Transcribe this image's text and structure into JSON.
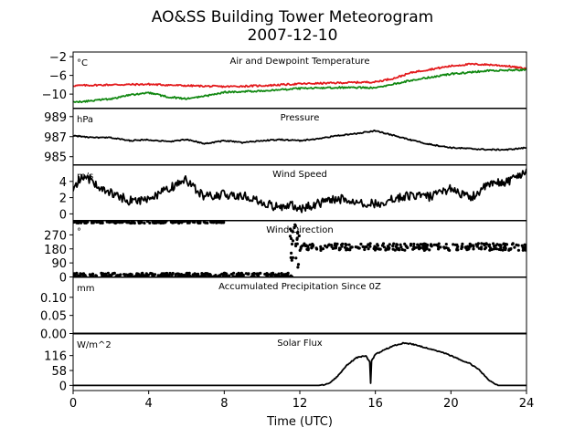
{
  "figure": {
    "title": "AO&SS Building Tower Meteorogram",
    "subtitle": "2007-12-10",
    "xlabel": "Time (UTC)"
  },
  "chart_data": [
    {
      "type": "line",
      "title": "Air and Dewpoint Temperature",
      "unit": "°C",
      "ylim": [
        -13,
        -1
      ],
      "yticks": [
        -2,
        -6,
        -10
      ],
      "xlim": [
        0,
        24
      ],
      "xticks": [
        0,
        4,
        8,
        12,
        16,
        20,
        24
      ],
      "series": [
        {
          "color": "#e31a1c",
          "x": [
            0,
            2,
            4,
            6,
            8,
            10,
            12,
            14,
            16,
            17,
            18,
            20,
            21,
            22,
            23,
            24
          ],
          "values": [
            -8.2,
            -8.0,
            -7.9,
            -8.2,
            -8.4,
            -8.2,
            -7.8,
            -7.6,
            -7.4,
            -6.6,
            -5.3,
            -4.0,
            -3.6,
            -3.7,
            -4.0,
            -4.6
          ]
        },
        {
          "color": "#118811",
          "x": [
            0,
            1,
            2,
            3,
            4,
            5,
            6,
            7,
            8,
            10,
            12,
            14,
            16,
            18,
            20,
            22,
            24
          ],
          "values": [
            -11.8,
            -11.4,
            -11.0,
            -10.2,
            -9.7,
            -10.6,
            -11.0,
            -10.4,
            -9.6,
            -9.3,
            -8.8,
            -8.6,
            -8.6,
            -7.0,
            -5.7,
            -5.0,
            -4.8
          ]
        }
      ]
    },
    {
      "type": "line",
      "title": "Pressure",
      "unit": "hPa",
      "ylim": [
        984.2,
        989.8
      ],
      "yticks": [
        989,
        987,
        985
      ],
      "xlim": [
        0,
        24
      ],
      "series": [
        {
          "color": "#000000",
          "x": [
            0,
            1,
            2,
            3,
            4,
            5,
            6,
            7,
            8,
            9,
            10,
            11,
            12,
            13,
            14,
            15,
            16,
            17,
            18,
            19,
            20,
            21,
            22,
            23,
            24
          ],
          "values": [
            987.1,
            986.9,
            986.9,
            986.6,
            986.7,
            986.5,
            986.7,
            986.3,
            986.6,
            986.4,
            986.6,
            986.7,
            986.6,
            986.8,
            987.1,
            987.3,
            987.6,
            987.1,
            986.6,
            986.2,
            985.9,
            985.8,
            985.7,
            985.7,
            985.9
          ]
        }
      ]
    },
    {
      "type": "line",
      "title": "Wind Speed",
      "unit": "m/s",
      "ylim": [
        -0.8,
        6.0
      ],
      "yticks": [
        4,
        2,
        0
      ],
      "xlim": [
        0,
        24
      ],
      "series": [
        {
          "color": "#000000",
          "x": [
            0,
            0.5,
            1,
            1.5,
            2,
            3,
            4,
            5,
            6,
            6.5,
            7,
            8,
            9,
            10,
            11,
            11.5,
            12,
            13,
            14,
            15,
            16,
            17,
            18,
            19,
            20,
            21,
            22,
            23,
            24
          ],
          "values": [
            3.2,
            4.6,
            4.2,
            3.0,
            2.6,
            1.6,
            1.8,
            3.0,
            4.2,
            3.0,
            2.1,
            2.4,
            2.2,
            1.4,
            0.7,
            1.3,
            0.6,
            1.3,
            1.9,
            1.5,
            1.2,
            1.9,
            2.3,
            2.1,
            3.2,
            1.9,
            3.6,
            4.0,
            5.3
          ]
        }
      ]
    },
    {
      "type": "scatter",
      "title": "Wind Direction",
      "unit": "°",
      "ylim": [
        0,
        360
      ],
      "yticks": [
        270,
        180,
        90,
        0
      ],
      "xlim": [
        0,
        24
      ],
      "description_points": "near 350-360 from 0-8 UTC, near 0-20 from 0-12 UTC, transition ~11.5-12 UTC, ~175-210 from 12-24 UTC",
      "series": [
        {
          "color": "#000000",
          "segments": [
            {
              "x0": 0.0,
              "x1": 8.0,
              "ymin": 345,
              "ymax": 360
            },
            {
              "x0": 0.0,
              "x1": 11.8,
              "ymin": 0,
              "ymax": 25
            },
            {
              "x0": 12.0,
              "x1": 24.0,
              "ymin": 170,
              "ymax": 215
            }
          ]
        }
      ]
    },
    {
      "type": "line",
      "title": "Accumulated Precipitation Since 0Z",
      "unit": "mm",
      "ylim": [
        0,
        0.155
      ],
      "yticks": [
        0.1,
        0.05,
        0.0
      ],
      "ytick_labels": [
        "0.10",
        "0.05",
        "0.00"
      ],
      "xlim": [
        0,
        24
      ],
      "series": [
        {
          "color": "#000000",
          "x": [
            0,
            24
          ],
          "values": [
            0,
            0
          ]
        }
      ]
    },
    {
      "type": "line",
      "title": "Solar Flux",
      "unit": "W/m^2",
      "ylim": [
        -20,
        200
      ],
      "yticks": [
        116,
        58,
        0
      ],
      "xlim": [
        0,
        24
      ],
      "series": [
        {
          "color": "#000000",
          "x": [
            0,
            13.0,
            13.5,
            14.0,
            14.5,
            15.0,
            15.5,
            15.7,
            15.75,
            15.8,
            16.0,
            16.5,
            17.0,
            17.5,
            18.0,
            18.5,
            19.0,
            19.5,
            20.0,
            20.5,
            21.0,
            21.5,
            22.0,
            22.5,
            24
          ],
          "values": [
            0,
            0,
            5,
            35,
            80,
            108,
            116,
            90,
            8,
            95,
            120,
            140,
            155,
            165,
            160,
            150,
            140,
            130,
            115,
            100,
            85,
            60,
            20,
            0,
            0
          ]
        }
      ]
    }
  ]
}
